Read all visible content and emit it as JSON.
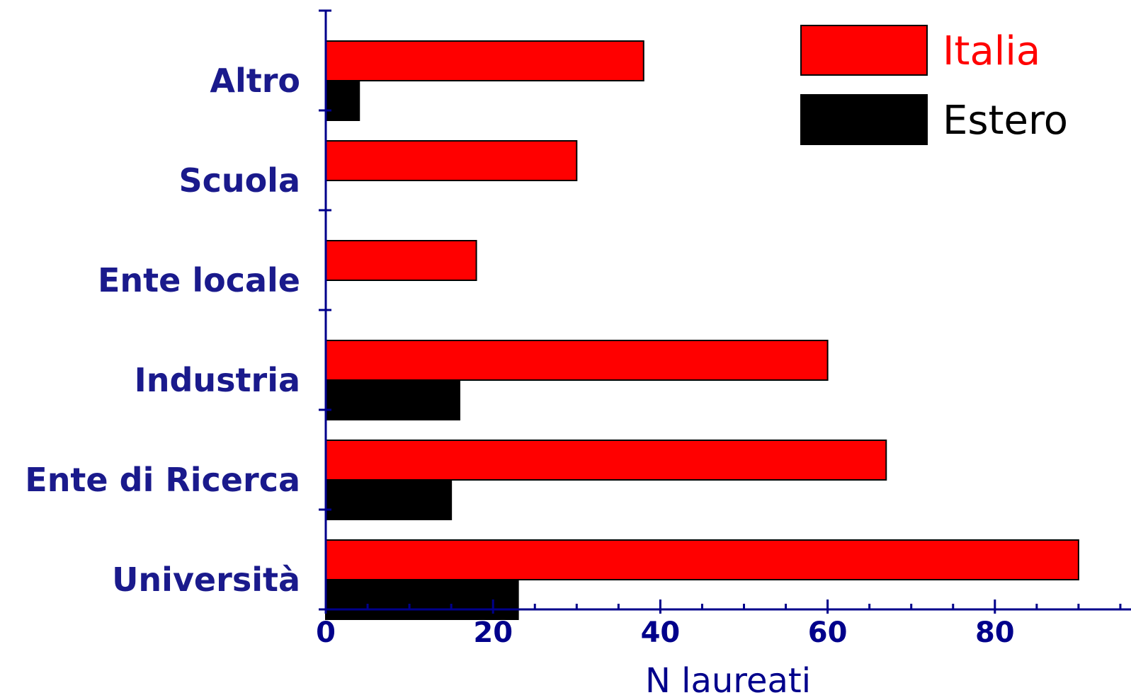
{
  "chart_data": {
    "type": "bar",
    "orientation": "horizontal",
    "categories": [
      "Altro",
      "Scuola",
      "Ente locale",
      "Industria",
      "Ente di Ricerca",
      "Università"
    ],
    "series": [
      {
        "name": "Italia",
        "values": [
          38,
          30,
          18,
          60,
          67,
          90
        ],
        "color": "#ff0000"
      },
      {
        "name": "Estero",
        "values": [
          4,
          0,
          0,
          16,
          15,
          23
        ],
        "color": "#000000"
      }
    ],
    "xlabel": "N laureati",
    "ylabel": "",
    "xlim": [
      0,
      96
    ],
    "xticks": [
      "0",
      "20",
      "40",
      "60",
      "80"
    ],
    "xtick_values": [
      0,
      20,
      40,
      60,
      80
    ],
    "legend_position": "top-right",
    "grid": false,
    "colors": {
      "axis": "#00008b",
      "category_label": "#1a1a8c",
      "legend_italia_text": "#ff0000",
      "legend_estero_text": "#000000"
    }
  }
}
